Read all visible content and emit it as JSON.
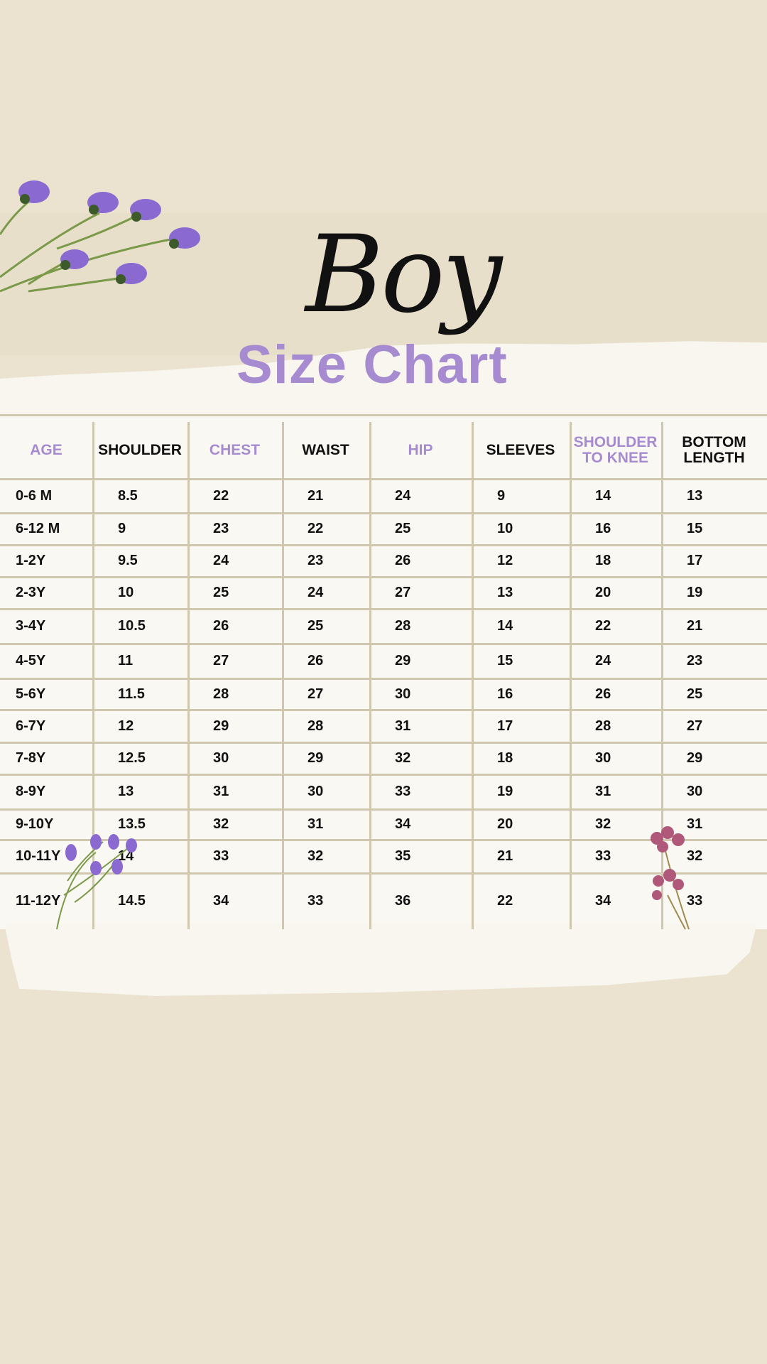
{
  "title": {
    "script": "Boy",
    "main": "Size Chart"
  },
  "colors": {
    "accent": "#a78bd1",
    "background": "#ebe3d0",
    "paper": "#faf8f2",
    "grid": "#cfc7ae"
  },
  "table": {
    "headers": [
      {
        "label": "AGE",
        "accent": true
      },
      {
        "label": "SHOULDER",
        "accent": false
      },
      {
        "label": "CHEST",
        "accent": true
      },
      {
        "label": "WAIST",
        "accent": false
      },
      {
        "label": "HIP",
        "accent": true
      },
      {
        "label": "SLEEVES",
        "accent": false
      },
      {
        "label": "SHOULDER TO KNEE",
        "accent": true
      },
      {
        "label": "BOTTOM LENGTH",
        "accent": false
      }
    ],
    "rows": [
      [
        "0-6 M",
        "8.5",
        "22",
        "21",
        "24",
        "9",
        "14",
        "13"
      ],
      [
        "6-12 M",
        "9",
        "23",
        "22",
        "25",
        "10",
        "16",
        "15"
      ],
      [
        "1-2Y",
        "9.5",
        "24",
        "23",
        "26",
        "12",
        "18",
        "17"
      ],
      [
        "2-3Y",
        "10",
        "25",
        "24",
        "27",
        "13",
        "20",
        "19"
      ],
      [
        "3-4Y",
        "10.5",
        "26",
        "25",
        "28",
        "14",
        "22",
        "21"
      ],
      [
        "4-5Y",
        "11",
        "27",
        "26",
        "29",
        "15",
        "24",
        "23"
      ],
      [
        "5-6Y",
        "11.5",
        "28",
        "27",
        "30",
        "16",
        "26",
        "25"
      ],
      [
        "6-7Y",
        "12",
        "29",
        "28",
        "31",
        "17",
        "28",
        "27"
      ],
      [
        "7-8Y",
        "12.5",
        "30",
        "29",
        "32",
        "18",
        "30",
        "29"
      ],
      [
        "8-9Y",
        "13",
        "31",
        "30",
        "33",
        "19",
        "31",
        "30"
      ],
      [
        "9-10Y",
        "13.5",
        "32",
        "31",
        "34",
        "20",
        "32",
        "31"
      ],
      [
        "10-11Y",
        "14",
        "33",
        "32",
        "35",
        "21",
        "33",
        "32"
      ],
      [
        "11-12Y",
        "14.5",
        "34",
        "33",
        "36",
        "22",
        "34",
        "33"
      ]
    ]
  },
  "decorations": [
    "purple-flower-icon",
    "pink-flower-icon"
  ]
}
